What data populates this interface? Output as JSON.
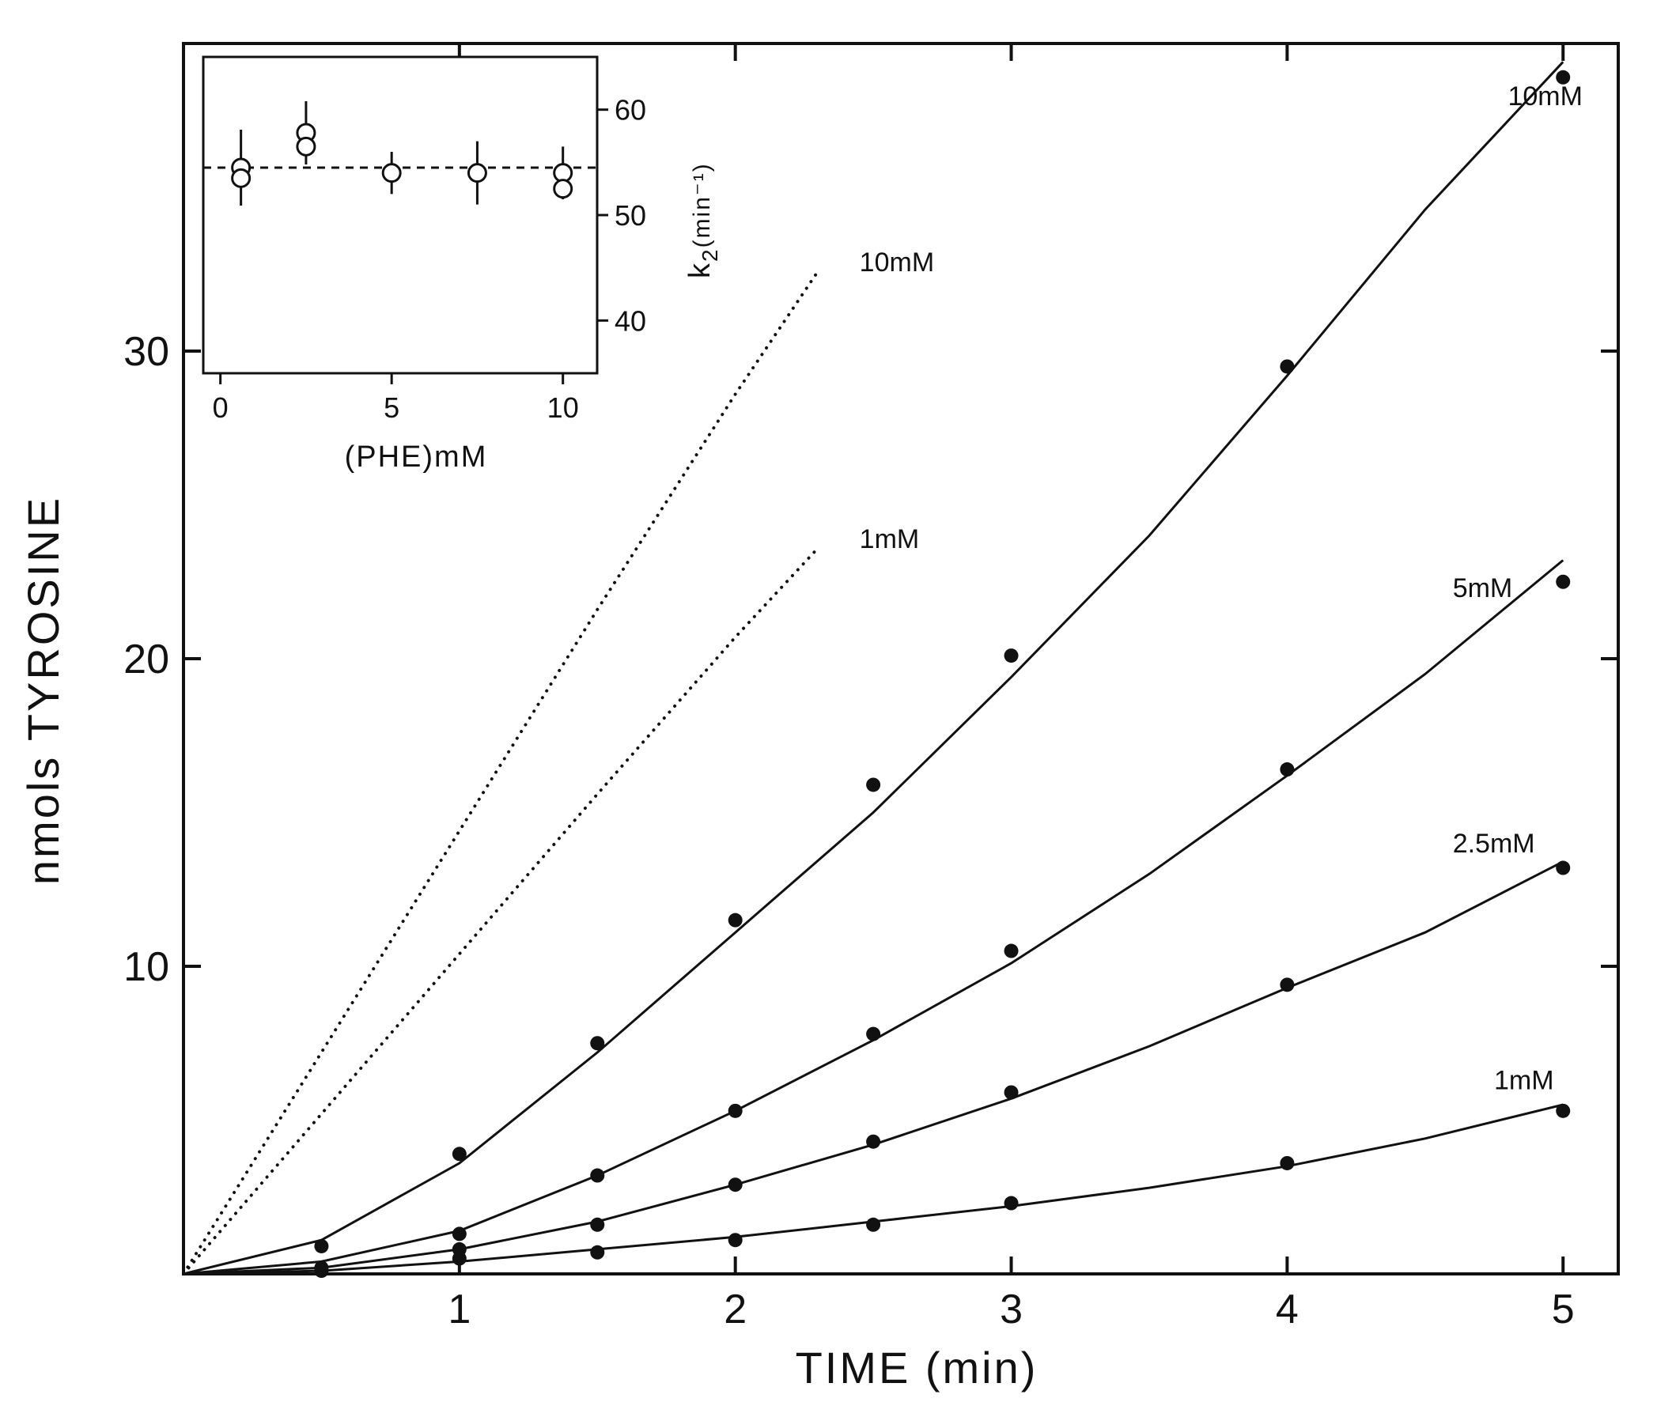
{
  "chart_data": [
    {
      "type": "line",
      "title": "",
      "xlabel": "TIME (min)",
      "ylabel": "nmols TYROSINE",
      "xlim": [
        0,
        5.2
      ],
      "ylim": [
        0,
        40
      ],
      "xticks": [
        1,
        2,
        3,
        4,
        5
      ],
      "xtick_labels": [
        "1",
        "2",
        "3",
        "4",
        "5"
      ],
      "yticks": [
        10,
        20,
        30
      ],
      "ytick_labels": [
        "10",
        "20",
        "30"
      ],
      "grid": false,
      "colors": {
        "ink": "#111111",
        "background": "#ffffff"
      },
      "series": [
        {
          "name": "10mM",
          "style": "solid-with-points",
          "label_at": [
            4.8,
            38
          ],
          "x": [
            0.5,
            1,
            1.5,
            2,
            2.5,
            3,
            4,
            5
          ],
          "y": [
            0.9,
            3.9,
            7.5,
            11.5,
            15.9,
            20.1,
            29.5,
            38.9
          ],
          "fit_x": [
            0,
            0.5,
            1,
            1.5,
            2,
            2.5,
            3,
            3.5,
            4,
            4.5,
            5
          ],
          "fit_y": [
            0,
            1.1,
            3.6,
            7.2,
            11.1,
            15.0,
            19.4,
            24.0,
            29.2,
            34.6,
            39.4
          ]
        },
        {
          "name": "5mM",
          "style": "solid-with-points",
          "label_at": [
            4.6,
            22
          ],
          "x": [
            0.5,
            1,
            1.5,
            2,
            2.5,
            3,
            4,
            5
          ],
          "y": [
            0.2,
            1.3,
            3.2,
            5.3,
            7.8,
            10.5,
            16.4,
            22.5
          ],
          "fit_x": [
            0,
            0.5,
            1,
            1.5,
            2,
            2.5,
            3,
            3.5,
            4,
            4.5,
            5
          ],
          "fit_y": [
            0,
            0.4,
            1.4,
            3.2,
            5.3,
            7.6,
            10.1,
            13.0,
            16.2,
            19.5,
            23.2
          ]
        },
        {
          "name": "2.5mM",
          "style": "solid-with-points",
          "label_at": [
            4.6,
            13.7
          ],
          "x": [
            0.5,
            1,
            1.5,
            2,
            2.5,
            3,
            4,
            5
          ],
          "y": [
            0.1,
            0.8,
            1.6,
            2.9,
            4.3,
            5.9,
            9.4,
            13.2
          ],
          "fit_x": [
            0,
            0.5,
            1,
            1.5,
            2,
            2.5,
            3,
            3.5,
            4,
            4.5,
            5
          ],
          "fit_y": [
            0,
            0.2,
            0.8,
            1.7,
            2.9,
            4.2,
            5.7,
            7.4,
            9.3,
            11.1,
            13.4
          ]
        },
        {
          "name": "1mM",
          "style": "solid-with-points",
          "label_at": [
            4.75,
            6
          ],
          "x": [
            1,
            1.5,
            2,
            2.5,
            3,
            4,
            5
          ],
          "y": [
            0.5,
            0.7,
            1.1,
            1.6,
            2.3,
            3.6,
            5.3
          ],
          "fit_x": [
            0,
            0.5,
            1,
            1.5,
            2,
            2.5,
            3,
            3.5,
            4,
            4.5,
            5
          ],
          "fit_y": [
            0,
            0.1,
            0.4,
            0.8,
            1.2,
            1.7,
            2.2,
            2.8,
            3.5,
            4.4,
            5.5
          ]
        },
        {
          "name": "10mM",
          "style": "dotted",
          "label_at": [
            2.45,
            32.6
          ],
          "x": [
            0,
            0.5,
            1,
            1.5,
            2,
            2.3
          ],
          "y": [
            0,
            7.2,
            14.4,
            21.6,
            28.6,
            32.6
          ]
        },
        {
          "name": "1mM",
          "style": "dotted",
          "label_at": [
            2.45,
            23.6
          ],
          "x": [
            0,
            0.5,
            1,
            1.5,
            2,
            2.3
          ],
          "y": [
            0,
            5.2,
            10.4,
            15.6,
            20.7,
            23.6
          ]
        }
      ]
    },
    {
      "type": "scatter",
      "role": "inset",
      "title": "",
      "xlabel": "(PHE)mM",
      "ylabel": "k2(min⁻¹)",
      "ylabel_main": "k",
      "ylabel_sub": "2",
      "ylabel_unit": "(min⁻¹)",
      "y_axis_side": "right",
      "xlim": [
        -0.5,
        11
      ],
      "ylim": [
        35,
        65
      ],
      "xticks": [
        0,
        5,
        10
      ],
      "xtick_labels": [
        "0",
        "5",
        "10"
      ],
      "yticks": [
        40,
        50,
        60
      ],
      "ytick_labels": [
        "40",
        "50",
        "60"
      ],
      "reference_line": {
        "style": "dashed",
        "y": 54.5
      },
      "points": [
        {
          "x": 0.6,
          "y": 54.5,
          "err": 3.6
        },
        {
          "x": 0.6,
          "y": 53.5,
          "err": 0
        },
        {
          "x": 2.5,
          "y": 57.8,
          "err": 3.0
        },
        {
          "x": 2.5,
          "y": 56.5,
          "err": 0
        },
        {
          "x": 5.0,
          "y": 54.0,
          "err": 2.0
        },
        {
          "x": 7.5,
          "y": 54.0,
          "err": 3.0
        },
        {
          "x": 10.0,
          "y": 54.0,
          "err": 2.5
        },
        {
          "x": 10.0,
          "y": 52.5,
          "err": 0
        }
      ]
    }
  ]
}
